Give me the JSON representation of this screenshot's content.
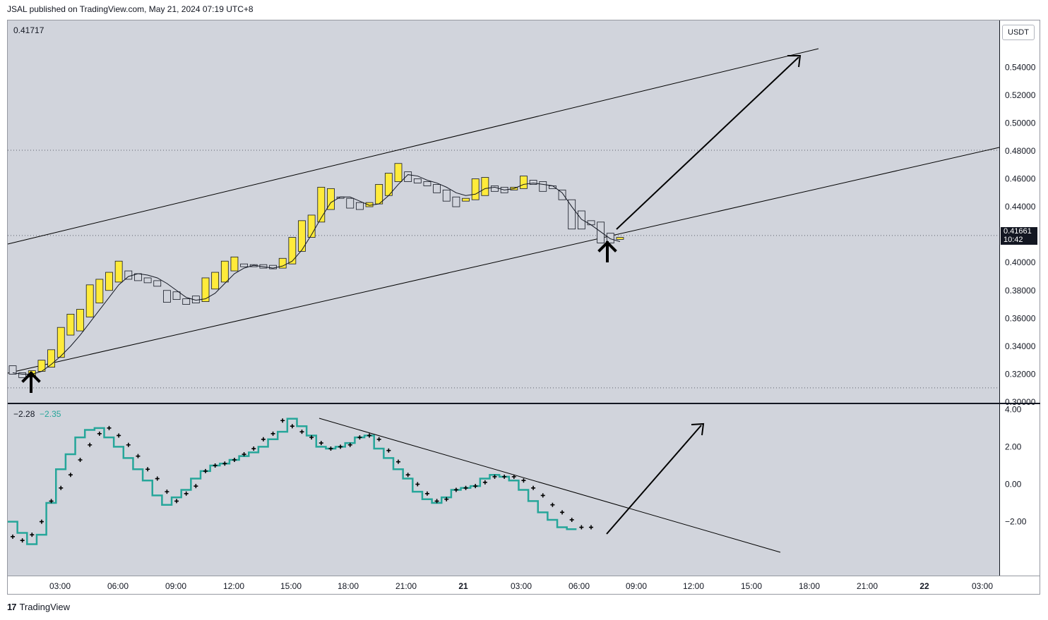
{
  "header": {
    "published": "JSAL published on TradingView.com, May 21, 2024 07:19 UTC+8"
  },
  "main_legend": {
    "value": "0.41717"
  },
  "osc_legend": {
    "value1": "−2.28",
    "value2": "−2.35",
    "value2_color": "#26a69a"
  },
  "currency_button": "USDT",
  "last_price": {
    "price": "0.41661",
    "countdown": "10:42"
  },
  "footer": {
    "brand": "TradingView",
    "logo": "17"
  },
  "colors": {
    "bull": "#ffeb3b",
    "bear": "#d1d4dc",
    "osc_line": "#26a69a",
    "osc_dots": "#000000",
    "trendline": "#000000"
  },
  "chart_data": [
    {
      "type": "candlestick",
      "pane": "price",
      "interval": "30m",
      "y_ticks": [
        "0.54000",
        "0.52000",
        "0.50000",
        "0.48000",
        "0.46000",
        "0.44000",
        "0.40000",
        "0.38000",
        "0.36000",
        "0.34000",
        "0.32000",
        "0.30000"
      ],
      "ylim": [
        0.2995,
        0.5735
      ],
      "dotted_levels": [
        0.4805,
        0.4194,
        0.3102
      ],
      "x_ticks": [
        "03:00",
        "06:00",
        "09:00",
        "12:00",
        "15:00",
        "18:00",
        "21:00",
        "21",
        "03:00",
        "06:00",
        "09:00",
        "12:00",
        "15:00",
        "18:00",
        "21:00",
        "22",
        "03:00"
      ],
      "candles": [
        {
          "t": 0,
          "o": 0.326,
          "c": 0.32,
          "bull": false
        },
        {
          "t": 1,
          "o": 0.321,
          "c": 0.3175,
          "bull": false
        },
        {
          "t": 2,
          "o": 0.318,
          "c": 0.3225,
          "bull": true
        },
        {
          "t": 3,
          "o": 0.322,
          "c": 0.33,
          "bull": true
        },
        {
          "t": 4,
          "o": 0.325,
          "c": 0.3375,
          "bull": true
        },
        {
          "t": 5,
          "o": 0.332,
          "c": 0.3535,
          "bull": true
        },
        {
          "t": 6,
          "o": 0.348,
          "c": 0.363,
          "bull": true
        },
        {
          "t": 7,
          "o": 0.351,
          "c": 0.3665,
          "bull": true
        },
        {
          "t": 8,
          "o": 0.361,
          "c": 0.384,
          "bull": true
        },
        {
          "t": 9,
          "o": 0.371,
          "c": 0.388,
          "bull": true
        },
        {
          "t": 10,
          "o": 0.38,
          "c": 0.393,
          "bull": true
        },
        {
          "t": 11,
          "o": 0.386,
          "c": 0.401,
          "bull": true
        },
        {
          "t": 12,
          "o": 0.394,
          "c": 0.388,
          "bull": false
        },
        {
          "t": 13,
          "o": 0.392,
          "c": 0.387,
          "bull": false
        },
        {
          "t": 14,
          "o": 0.389,
          "c": 0.3855,
          "bull": false
        },
        {
          "t": 15,
          "o": 0.387,
          "c": 0.383,
          "bull": false
        },
        {
          "t": 16,
          "o": 0.38,
          "c": 0.3715,
          "bull": false
        },
        {
          "t": 17,
          "o": 0.379,
          "c": 0.3735,
          "bull": false
        },
        {
          "t": 18,
          "o": 0.374,
          "c": 0.37,
          "bull": false
        },
        {
          "t": 19,
          "o": 0.376,
          "c": 0.371,
          "bull": false
        },
        {
          "t": 20,
          "o": 0.372,
          "c": 0.389,
          "bull": true
        },
        {
          "t": 21,
          "o": 0.381,
          "c": 0.393,
          "bull": true
        },
        {
          "t": 22,
          "o": 0.386,
          "c": 0.401,
          "bull": true
        },
        {
          "t": 23,
          "o": 0.394,
          "c": 0.404,
          "bull": true
        },
        {
          "t": 24,
          "o": 0.399,
          "c": 0.397,
          "bull": false
        },
        {
          "t": 25,
          "o": 0.3985,
          "c": 0.397,
          "bull": false
        },
        {
          "t": 26,
          "o": 0.3985,
          "c": 0.396,
          "bull": false
        },
        {
          "t": 27,
          "o": 0.398,
          "c": 0.3955,
          "bull": false
        },
        {
          "t": 28,
          "o": 0.396,
          "c": 0.403,
          "bull": true
        },
        {
          "t": 29,
          "o": 0.399,
          "c": 0.418,
          "bull": true
        },
        {
          "t": 30,
          "o": 0.408,
          "c": 0.43,
          "bull": true
        },
        {
          "t": 31,
          "o": 0.418,
          "c": 0.434,
          "bull": true
        },
        {
          "t": 32,
          "o": 0.429,
          "c": 0.454,
          "bull": true
        },
        {
          "t": 33,
          "o": 0.438,
          "c": 0.453,
          "bull": true
        },
        {
          "t": 34,
          "o": 0.447,
          "c": 0.447,
          "bull": false
        },
        {
          "t": 35,
          "o": 0.446,
          "c": 0.439,
          "bull": false
        },
        {
          "t": 36,
          "o": 0.443,
          "c": 0.438,
          "bull": false
        },
        {
          "t": 37,
          "o": 0.44,
          "c": 0.443,
          "bull": true
        },
        {
          "t": 38,
          "o": 0.442,
          "c": 0.456,
          "bull": true
        },
        {
          "t": 39,
          "o": 0.448,
          "c": 0.464,
          "bull": true
        },
        {
          "t": 40,
          "o": 0.458,
          "c": 0.471,
          "bull": true
        },
        {
          "t": 41,
          "o": 0.465,
          "c": 0.458,
          "bull": false
        },
        {
          "t": 42,
          "o": 0.46,
          "c": 0.457,
          "bull": false
        },
        {
          "t": 43,
          "o": 0.458,
          "c": 0.455,
          "bull": false
        },
        {
          "t": 44,
          "o": 0.456,
          "c": 0.45,
          "bull": false
        },
        {
          "t": 45,
          "o": 0.452,
          "c": 0.444,
          "bull": false
        },
        {
          "t": 46,
          "o": 0.447,
          "c": 0.44,
          "bull": false
        },
        {
          "t": 47,
          "o": 0.444,
          "c": 0.446,
          "bull": true
        },
        {
          "t": 48,
          "o": 0.445,
          "c": 0.46,
          "bull": true
        },
        {
          "t": 49,
          "o": 0.448,
          "c": 0.461,
          "bull": true
        },
        {
          "t": 50,
          "o": 0.455,
          "c": 0.451,
          "bull": false
        },
        {
          "t": 51,
          "o": 0.454,
          "c": 0.45,
          "bull": false
        },
        {
          "t": 52,
          "o": 0.452,
          "c": 0.454,
          "bull": true
        },
        {
          "t": 53,
          "o": 0.453,
          "c": 0.462,
          "bull": true
        },
        {
          "t": 54,
          "o": 0.459,
          "c": 0.456,
          "bull": false
        },
        {
          "t": 55,
          "o": 0.458,
          "c": 0.451,
          "bull": false
        },
        {
          "t": 56,
          "o": 0.455,
          "c": 0.453,
          "bull": false
        },
        {
          "t": 57,
          "o": 0.452,
          "c": 0.445,
          "bull": false
        },
        {
          "t": 58,
          "o": 0.445,
          "c": 0.424,
          "bull": false
        },
        {
          "t": 59,
          "o": 0.437,
          "c": 0.424,
          "bull": false
        },
        {
          "t": 60,
          "o": 0.43,
          "c": 0.427,
          "bull": false
        },
        {
          "t": 61,
          "o": 0.429,
          "c": 0.414,
          "bull": false
        },
        {
          "t": 62,
          "o": 0.421,
          "c": 0.414,
          "bull": false
        },
        {
          "t": 63,
          "o": 0.418,
          "c": 0.4166,
          "bull": true
        }
      ],
      "moving_average": [
        0.321,
        0.32,
        0.32,
        0.322,
        0.327,
        0.333,
        0.34,
        0.348,
        0.357,
        0.366,
        0.375,
        0.384,
        0.39,
        0.392,
        0.391,
        0.389,
        0.385,
        0.38,
        0.375,
        0.373,
        0.374,
        0.378,
        0.385,
        0.392,
        0.396,
        0.398,
        0.397,
        0.396,
        0.3975,
        0.401,
        0.409,
        0.42,
        0.432,
        0.443,
        0.447,
        0.447,
        0.444,
        0.441,
        0.442,
        0.448,
        0.456,
        0.463,
        0.462,
        0.459,
        0.457,
        0.454,
        0.45,
        0.448,
        0.449,
        0.453,
        0.454,
        0.452,
        0.453,
        0.456,
        0.457,
        0.456,
        0.455,
        0.45,
        0.44,
        0.431,
        0.427,
        0.422,
        0.417,
        0.415
      ]
    },
    {
      "type": "line",
      "pane": "oscillator",
      "y_ticks": [
        "4.00",
        "2.00",
        "0.00",
        "−2.00"
      ],
      "ylim": [
        -4.2,
        4.2
      ],
      "series": [
        {
          "style": "step",
          "color": "#26a69a",
          "values": [
            -2.0,
            -2.6,
            -3.2,
            -2.7,
            -1.0,
            0.8,
            1.6,
            2.5,
            2.9,
            3.0,
            2.5,
            2.0,
            1.4,
            0.8,
            0.2,
            -0.6,
            -1.1,
            -0.7,
            -0.3,
            0.3,
            0.7,
            1.0,
            1.1,
            1.3,
            1.5,
            1.7,
            2.0,
            2.4,
            2.8,
            3.5,
            3.1,
            2.6,
            2.0,
            1.9,
            2.0,
            2.2,
            2.5,
            2.6,
            1.9,
            1.4,
            0.8,
            0.3,
            -0.4,
            -0.8,
            -1.0,
            -0.7,
            -0.3,
            -0.2,
            -0.1,
            0.3,
            0.5,
            0.4,
            0.2,
            -0.3,
            -0.9,
            -1.5,
            -1.9,
            -2.3,
            -2.4
          ]
        },
        {
          "style": "crosses",
          "color": "#000000",
          "values": [
            -2.8,
            -3.0,
            -2.7,
            -2.0,
            -0.9,
            -0.2,
            0.5,
            1.3,
            2.1,
            2.7,
            3.0,
            2.6,
            2.1,
            1.5,
            0.8,
            0.3,
            -0.4,
            -0.9,
            -0.5,
            -0.1,
            0.7,
            1.0,
            1.1,
            1.3,
            1.6,
            1.9,
            2.4,
            2.7,
            3.4,
            3.1,
            2.8,
            2.5,
            2.2,
            1.9,
            2.0,
            2.1,
            2.5,
            2.6,
            2.4,
            1.8,
            1.2,
            0.5,
            0.0,
            -0.5,
            -0.9,
            -0.8,
            -0.3,
            -0.2,
            -0.1,
            0.1,
            0.4,
            0.4,
            0.4,
            0.2,
            -0.2,
            -0.6,
            -1.1,
            -1.5,
            -1.9,
            -2.3,
            -2.3
          ]
        }
      ]
    }
  ]
}
